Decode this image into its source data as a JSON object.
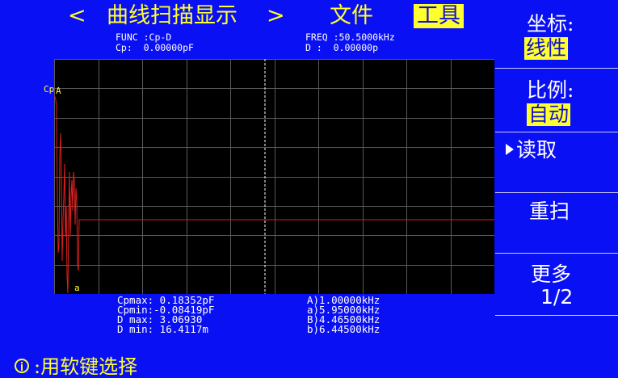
{
  "header": {
    "prev_arrow": "<",
    "title": "曲线扫描显示",
    "next_arrow": ">",
    "file_menu": "文件",
    "tools_menu": "工具"
  },
  "params": {
    "func": "FUNC :Cp-D",
    "cp": "Cp:  0.00000pF",
    "freq": "FREQ :50.5000kHz",
    "d": "D :  0.00000p"
  },
  "graph": {
    "y_label": "Cp",
    "marker_upper": "A",
    "marker_lower": "a",
    "trace_color": "#e02020",
    "grid_color": "#5a5a5a",
    "cursor_color": "#ffffff"
  },
  "stats": {
    "cpmax": "Cpmax: 0.18352pF",
    "cpmin": "Cpmin:-0.08419pF",
    "dmax": "D max: 3.06930",
    "dmin": "D min: 16.4117m",
    "A": "A)1.00000kHz",
    "a": "a)5.95000kHz",
    "B": "B)4.46500kHz",
    "b": "b)6.44500kHz"
  },
  "sidebar": {
    "coord_label": "坐标:",
    "coord_value": "线性",
    "scale_label": "比例:",
    "scale_value": "自动",
    "read_label": "读取",
    "rescan_label": "重扫",
    "more_label": "更多",
    "more_page": "1/2"
  },
  "hint": {
    "icon_name": "info-circle-icon",
    "text": ":用软键选择"
  }
}
